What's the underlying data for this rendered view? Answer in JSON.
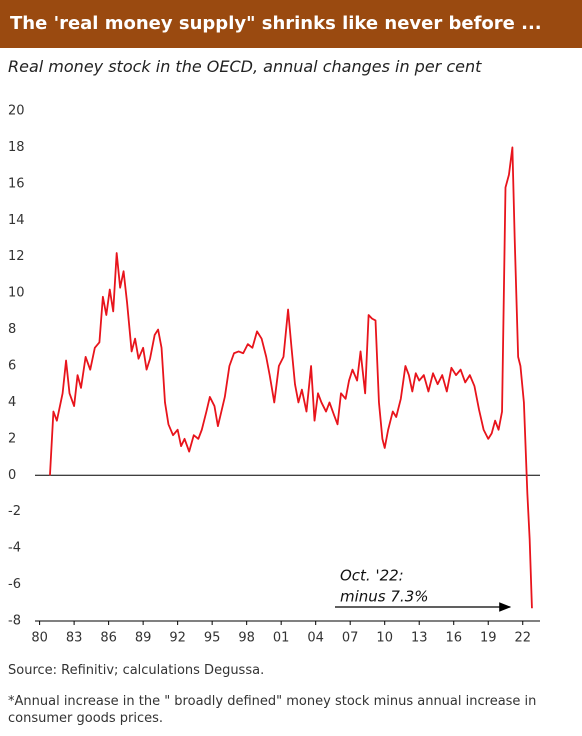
{
  "chart_data": {
    "type": "line",
    "title": "The 'real money supply\" shrinks like never before ...",
    "subtitle": "Real money stock in the OECD, annual changes in per cent",
    "source": "Source: Refinitiv; calculations Degussa.",
    "note": "*Annual increase in the \" broadly defined\" money stock minus annual increase in consumer goods prices.",
    "annotations": [
      "Oct. '22:",
      "minus 7.3%"
    ],
    "color": "#e8141c",
    "xlim": [
      1979.6,
      2023.5
    ],
    "ylim": [
      -8,
      20
    ],
    "xticks": [
      {
        "value": 1980,
        "label": "80"
      },
      {
        "value": 1983,
        "label": "83"
      },
      {
        "value": 1986,
        "label": "86"
      },
      {
        "value": 1989,
        "label": "89"
      },
      {
        "value": 1992,
        "label": "92"
      },
      {
        "value": 1995,
        "label": "95"
      },
      {
        "value": 1998,
        "label": "98"
      },
      {
        "value": 2001,
        "label": "01"
      },
      {
        "value": 2004,
        "label": "04"
      },
      {
        "value": 2007,
        "label": "07"
      },
      {
        "value": 2010,
        "label": "10"
      },
      {
        "value": 2013,
        "label": "13"
      },
      {
        "value": 2016,
        "label": "16"
      },
      {
        "value": 2019,
        "label": "19"
      },
      {
        "value": 2022,
        "label": "22"
      }
    ],
    "yticks": [
      -8,
      -6,
      -4,
      -2,
      0,
      2,
      4,
      6,
      8,
      10,
      12,
      14,
      16,
      18,
      20
    ],
    "x": [
      1980.9,
      1981.2,
      1981.5,
      1982.0,
      1982.3,
      1982.6,
      1983.0,
      1983.3,
      1983.6,
      1984.0,
      1984.4,
      1984.8,
      1985.2,
      1985.5,
      1985.8,
      1986.1,
      1986.4,
      1986.7,
      1987.0,
      1987.3,
      1987.6,
      1988.0,
      1988.3,
      1988.6,
      1989.0,
      1989.3,
      1989.6,
      1990.0,
      1990.3,
      1990.6,
      1990.9,
      1991.2,
      1991.6,
      1992.0,
      1992.3,
      1992.6,
      1993.0,
      1993.4,
      1993.8,
      1994.1,
      1994.5,
      1994.8,
      1995.2,
      1995.5,
      1995.8,
      1996.1,
      1996.5,
      1996.9,
      1997.3,
      1997.7,
      1998.1,
      1998.5,
      1998.9,
      1999.3,
      1999.7,
      2000.0,
      2000.4,
      2000.8,
      2001.2,
      2001.6,
      2001.9,
      2002.2,
      2002.5,
      2002.8,
      2003.2,
      2003.6,
      2003.9,
      2004.2,
      2004.5,
      2004.9,
      2005.2,
      2005.6,
      2005.9,
      2006.2,
      2006.6,
      2006.9,
      2007.2,
      2007.6,
      2007.9,
      2008.3,
      2008.6,
      2008.9,
      2009.2,
      2009.5,
      2009.8,
      2010.0,
      2010.3,
      2010.7,
      2011.0,
      2011.4,
      2011.8,
      2012.1,
      2012.4,
      2012.7,
      2013.0,
      2013.4,
      2013.8,
      2014.2,
      2014.6,
      2015.0,
      2015.4,
      2015.8,
      2016.2,
      2016.6,
      2017.0,
      2017.4,
      2017.8,
      2018.2,
      2018.6,
      2019.0,
      2019.3,
      2019.6,
      2019.9,
      2020.2,
      2020.5,
      2020.8,
      2021.1,
      2021.3,
      2021.6,
      2021.8,
      2022.1,
      2022.4,
      2022.6,
      2022.8
    ],
    "values": [
      0,
      3.5,
      3,
      4.5,
      6.3,
      4.5,
      3.8,
      5.5,
      4.8,
      6.5,
      5.8,
      7,
      7.3,
      9.8,
      8.8,
      10.2,
      9,
      12.2,
      10.3,
      11.2,
      9.5,
      6.8,
      7.5,
      6.4,
      7,
      5.8,
      6.4,
      7.7,
      8,
      7,
      4,
      2.8,
      2.2,
      2.5,
      1.6,
      2,
      1.3,
      2.2,
      2.0,
      2.5,
      3.5,
      4.3,
      3.8,
      2.7,
      3.5,
      4.3,
      6,
      6.7,
      6.8,
      6.7,
      7.2,
      7.0,
      7.9,
      7.5,
      6.5,
      5.5,
      4.0,
      6,
      6.5,
      9.1,
      7,
      5,
      4,
      4.7,
      3.5,
      6,
      3,
      4.5,
      4,
      3.5,
      4,
      3.3,
      2.8,
      4.5,
      4.2,
      5.2,
      5.8,
      5.2,
      6.8,
      4.5,
      8.8,
      8.6,
      8.5,
      4,
      2,
      1.5,
      2.5,
      3.5,
      3.2,
      4.2,
      6,
      5.5,
      4.6,
      5.6,
      5.2,
      5.5,
      4.6,
      5.6,
      5,
      5.5,
      4.6,
      5.9,
      5.5,
      5.8,
      5.1,
      5.5,
      4.9,
      3.6,
      2.5,
      2.0,
      2.3,
      3,
      2.5,
      3.5,
      15.8,
      16.5,
      18,
      13,
      6.5,
      6,
      4,
      -1,
      -3.5,
      -7.3
    ]
  }
}
